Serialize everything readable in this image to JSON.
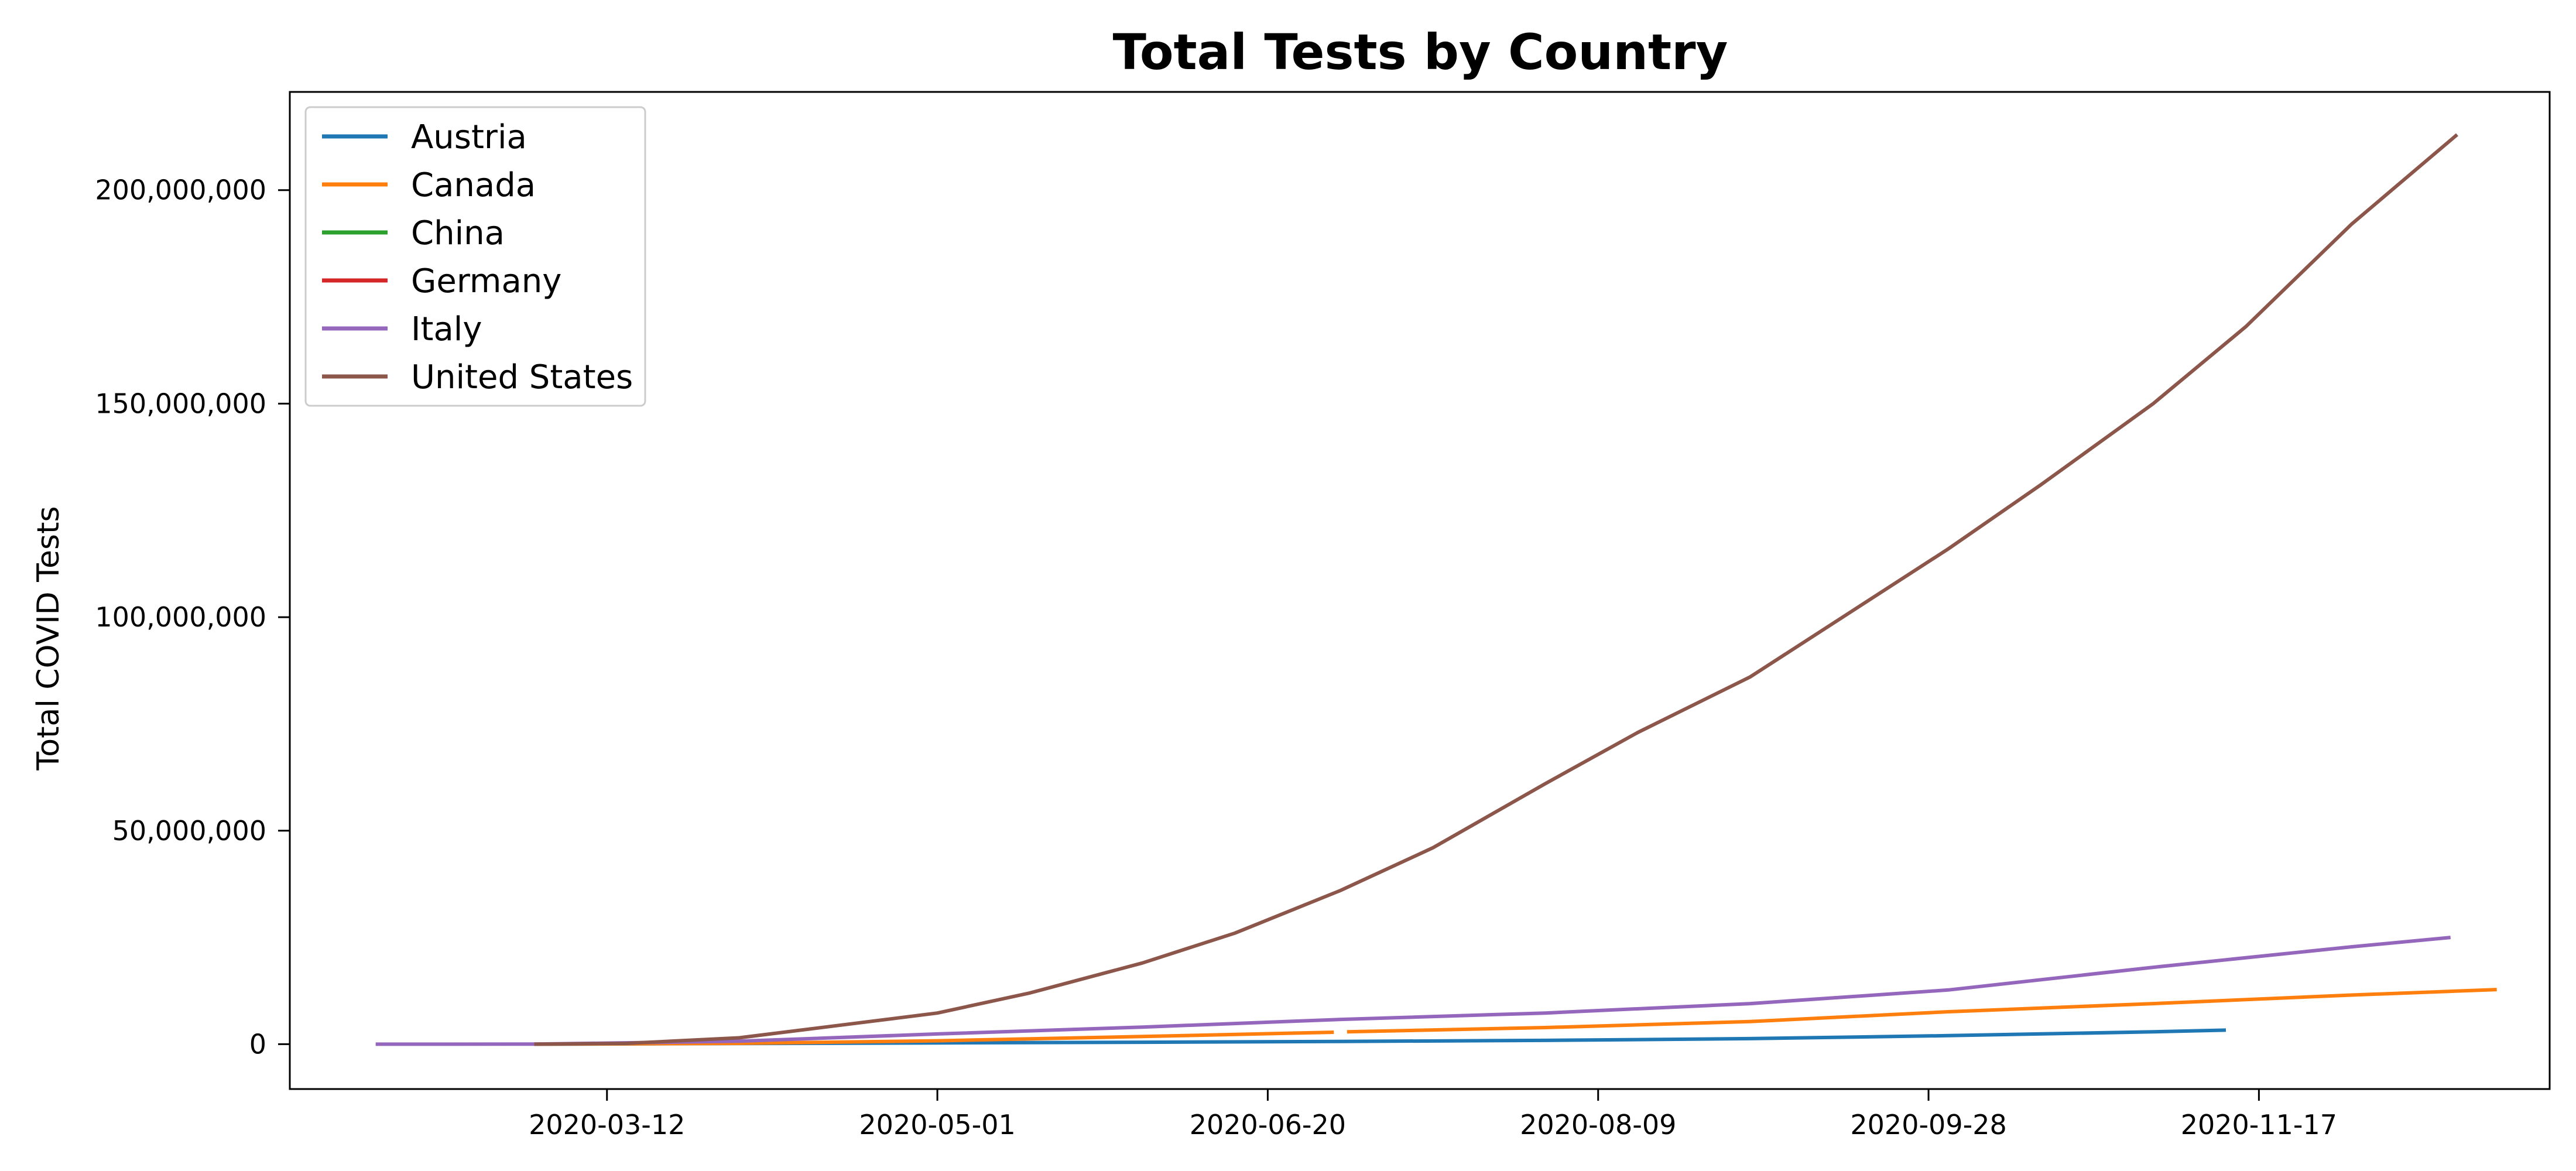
{
  "chart_data": {
    "type": "line",
    "title": "Total Tests by Country",
    "xlabel": "",
    "ylabel": "Total COVID Tests",
    "x_type": "date",
    "xlim": [
      "2020-01-24",
      "2020-12-31"
    ],
    "ylim": [
      -10500000,
      223000000
    ],
    "x_ticks": [
      "2020-03-12",
      "2020-05-01",
      "2020-06-20",
      "2020-08-09",
      "2020-09-28",
      "2020-11-17"
    ],
    "y_ticks": [
      0,
      50000000,
      100000000,
      150000000,
      200000000
    ],
    "y_tick_labels": [
      "0",
      "50,000,000",
      "100,000,000",
      "150,000,000",
      "200,000,000"
    ],
    "grid": false,
    "legend_position": "top-left",
    "series": [
      {
        "name": "Austria",
        "color": "#1f77b4",
        "points": [
          [
            "2020-03-01",
            0
          ],
          [
            "2020-04-01",
            150000
          ],
          [
            "2020-05-01",
            300000
          ],
          [
            "2020-06-01",
            450000
          ],
          [
            "2020-07-01",
            650000
          ],
          [
            "2020-08-01",
            900000
          ],
          [
            "2020-09-01",
            1300000
          ],
          [
            "2020-10-01",
            2000000
          ],
          [
            "2020-11-01",
            2900000
          ],
          [
            "2020-11-12",
            3300000
          ]
        ]
      },
      {
        "name": "Canada",
        "color": "#ff7f0e",
        "points": [
          [
            "2020-03-01",
            0
          ],
          [
            "2020-04-01",
            200000
          ],
          [
            "2020-05-01",
            800000
          ],
          [
            "2020-06-01",
            1800000
          ],
          [
            "2020-06-30",
            2800000
          ],
          null,
          [
            "2020-07-02",
            2900000
          ],
          [
            "2020-08-01",
            3900000
          ],
          [
            "2020-09-01",
            5300000
          ],
          [
            "2020-10-01",
            7600000
          ],
          [
            "2020-11-01",
            9500000
          ],
          [
            "2020-12-01",
            11500000
          ],
          [
            "2020-12-23",
            12800000
          ]
        ]
      },
      {
        "name": "China",
        "color": "#2ca02c",
        "points": []
      },
      {
        "name": "Germany",
        "color": "#d62728",
        "points": []
      },
      {
        "name": "Italy",
        "color": "#9467bd",
        "points": [
          [
            "2020-02-06",
            0
          ],
          [
            "2020-03-01",
            20000
          ],
          [
            "2020-04-01",
            700000
          ],
          [
            "2020-05-01",
            2400000
          ],
          [
            "2020-06-01",
            4000000
          ],
          [
            "2020-07-01",
            5800000
          ],
          [
            "2020-08-01",
            7300000
          ],
          [
            "2020-09-01",
            9500000
          ],
          [
            "2020-10-01",
            12700000
          ],
          [
            "2020-11-01",
            18000000
          ],
          [
            "2020-12-01",
            22800000
          ],
          [
            "2020-12-16",
            25000000
          ]
        ]
      },
      {
        "name": "United States",
        "color": "#8c564b",
        "points": [
          [
            "2020-03-01",
            0
          ],
          [
            "2020-03-15",
            200000
          ],
          [
            "2020-04-01",
            1500000
          ],
          [
            "2020-04-15",
            4200000
          ],
          [
            "2020-05-01",
            7300000
          ],
          [
            "2020-05-15",
            12000000
          ],
          [
            "2020-06-01",
            19000000
          ],
          [
            "2020-06-15",
            26000000
          ],
          [
            "2020-07-01",
            36000000
          ],
          [
            "2020-07-15",
            46000000
          ],
          [
            "2020-08-01",
            61000000
          ],
          [
            "2020-08-15",
            73000000
          ],
          [
            "2020-09-01",
            86000000
          ],
          [
            "2020-09-15",
            100000000
          ],
          [
            "2020-10-01",
            116000000
          ],
          [
            "2020-10-15",
            131000000
          ],
          [
            "2020-11-01",
            150000000
          ],
          [
            "2020-11-15",
            168000000
          ],
          [
            "2020-12-01",
            192000000
          ],
          [
            "2020-12-17",
            213000000
          ]
        ]
      }
    ]
  }
}
